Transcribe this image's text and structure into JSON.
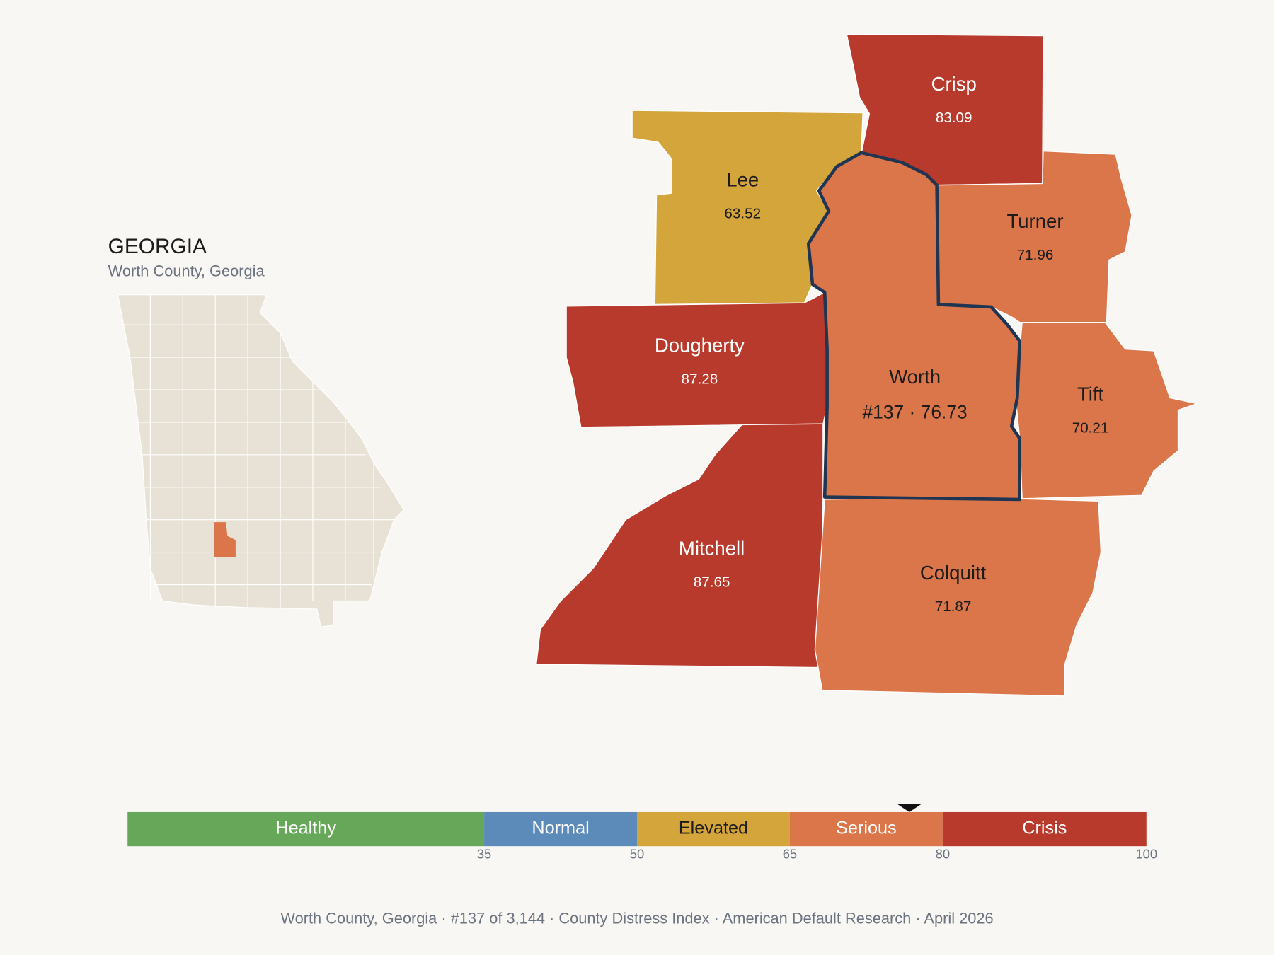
{
  "header": {
    "title": "GEORGIA",
    "subtitle": "Worth County, Georgia"
  },
  "counties": [
    {
      "name": "Crisp",
      "value": 83.09
    },
    {
      "name": "Lee",
      "value": 63.52
    },
    {
      "name": "Turner",
      "value": 71.96
    },
    {
      "name": "Dougherty",
      "value": 87.28
    },
    {
      "name": "Worth",
      "value": 76.73,
      "value_label": "#137 · 76.73",
      "focus": true
    },
    {
      "name": "Tift",
      "value": 70.21
    },
    {
      "name": "Mitchell",
      "value": 87.65
    },
    {
      "name": "Colquitt",
      "value": 71.87
    }
  ],
  "scale": {
    "xlim": [
      0,
      100
    ],
    "xticks": [
      35,
      50,
      65,
      80,
      100
    ],
    "segments": [
      {
        "name": "Healthy",
        "color": "#67a75a"
      },
      {
        "name": "Normal",
        "color": "#5c8bba"
      },
      {
        "name": "Elevated",
        "color": "#d3a53b"
      },
      {
        "name": "Serious",
        "color": "#da764a"
      },
      {
        "name": "Crisis",
        "color": "#b83a2c"
      }
    ]
  },
  "footer": "Worth County, Georgia  ·  #137 of 3,144  ·  County Distress Index  ·  American Default Research  ·  April 2026"
}
